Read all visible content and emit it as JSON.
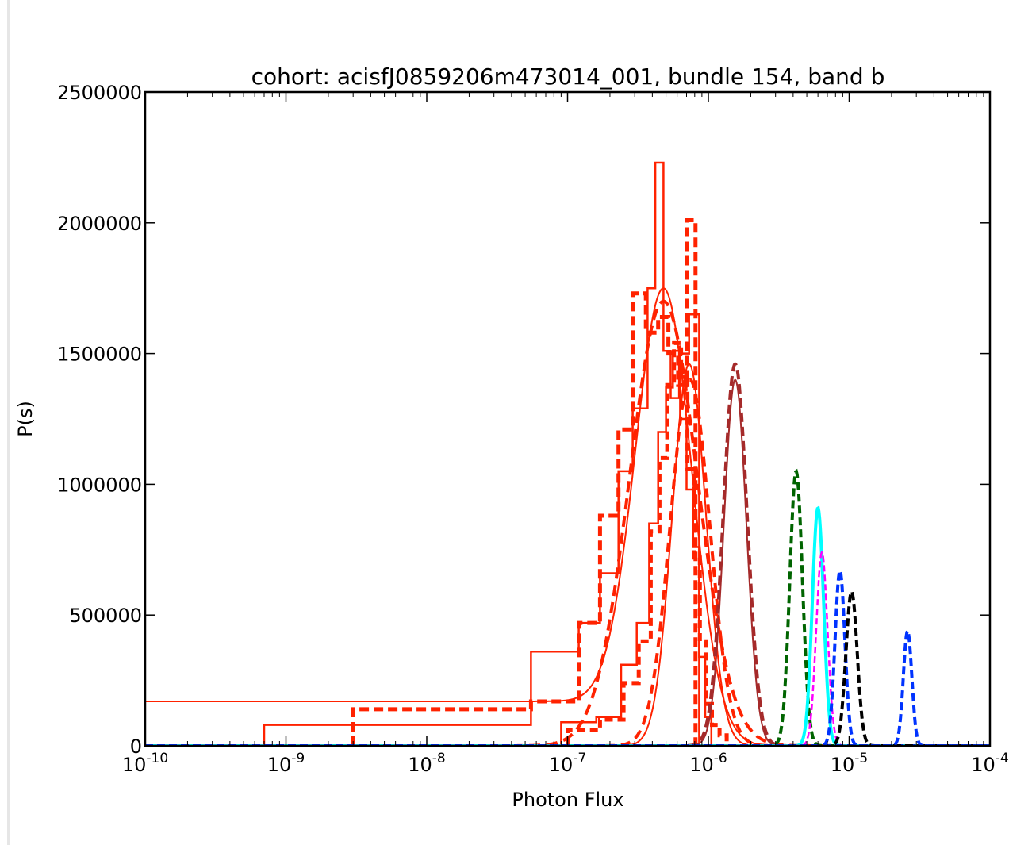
{
  "chart_data": {
    "type": "line",
    "title": "cohort: acisfJ0859206m473014_001, bundle 154, band b",
    "xlabel": "Photon Flux",
    "ylabel": "P(s)",
    "x_scale": "log",
    "xlim": [
      1e-10,
      0.0001
    ],
    "ylim": [
      0,
      2500000
    ],
    "x_ticks": [
      {
        "value": 1e-10,
        "base": "10",
        "exp": "-10"
      },
      {
        "value": 1e-09,
        "base": "10",
        "exp": "-9"
      },
      {
        "value": 1e-08,
        "base": "10",
        "exp": "-8"
      },
      {
        "value": 1e-07,
        "base": "10",
        "exp": "-7"
      },
      {
        "value": 1e-06,
        "base": "10",
        "exp": "-6"
      },
      {
        "value": 1e-05,
        "base": "10",
        "exp": "-5"
      },
      {
        "value": 0.0001,
        "base": "10",
        "exp": "-4"
      }
    ],
    "y_ticks": [
      {
        "value": 0,
        "label": "0"
      },
      {
        "value": 500000,
        "label": "500000"
      },
      {
        "value": 1000000,
        "label": "1000000"
      },
      {
        "value": 1500000,
        "label": "1500000"
      },
      {
        "value": 2000000,
        "label": "2000000"
      },
      {
        "value": 2500000,
        "label": "2500000"
      }
    ],
    "grid": false,
    "legend": "none",
    "series": [
      {
        "color": "#ff2200",
        "style": "step",
        "width": 2.5,
        "dash": "",
        "edges": [
          7e-10,
          3e-09,
          5.5e-08,
          1.2e-07,
          1.7e-07,
          2.3e-07,
          2.9e-07,
          3.7e-07,
          4.2e-07,
          4.8e-07,
          5.4e-07,
          6.2e-07,
          7.3e-07,
          8.6e-07
        ],
        "values": [
          80000,
          80000,
          360000,
          470000,
          660000,
          1050000,
          1290000,
          1750000,
          2230000,
          1510000,
          1330000,
          1500000,
          1650000,
          0
        ]
      },
      {
        "color": "#ff2200",
        "style": "step",
        "width": 5,
        "dash": "12,6",
        "edges": [
          3e-09,
          5.5e-08,
          1.2e-07,
          1.7e-07,
          2.3e-07,
          2.9e-07,
          3.6e-07,
          4.4e-07,
          5.2e-07,
          6.1e-07,
          7e-07,
          8.1e-07
        ],
        "values": [
          140000,
          170000,
          470000,
          880000,
          1210000,
          1730000,
          1580000,
          1640000,
          1500000,
          1380000,
          2010000,
          0
        ]
      },
      {
        "color": "#ff2200",
        "style": "curve",
        "width": 2,
        "dash": "",
        "baseline": 170000,
        "amp": 1580000,
        "mu": 4.8e-07,
        "sigma_dex": 0.2
      },
      {
        "color": "#ff2200",
        "style": "curve",
        "width": 4,
        "dash": "14,8",
        "baseline": 0,
        "amp": 1700000,
        "mu": 4.8e-07,
        "sigma_dex": 0.24
      },
      {
        "color": "#ff2200",
        "style": "step",
        "width": 2.5,
        "dash": "",
        "edges": [
          9e-08,
          1.6e-07,
          2.4e-07,
          3.1e-07,
          3.8e-07,
          4.4e-07,
          5e-07,
          5.6e-07,
          6.3e-07,
          7e-07,
          7.8e-07,
          8.6e-07,
          9.5e-07,
          1.05e-06
        ],
        "values": [
          90000,
          110000,
          310000,
          470000,
          850000,
          1200000,
          1370000,
          1510000,
          1250000,
          980000,
          760000,
          340000,
          110000,
          0
        ]
      },
      {
        "color": "#ff2200",
        "style": "step",
        "width": 5,
        "dash": "10,6",
        "edges": [
          1e-07,
          1.7e-07,
          2.5e-07,
          3.2e-07,
          3.9e-07,
          4.5e-07,
          5.1e-07,
          5.7e-07,
          6.4e-07,
          7.1e-07,
          7.9e-07,
          8.7e-07,
          9.6e-07,
          1.06e-06,
          1.2e-06,
          1.35e-06
        ],
        "values": [
          60000,
          100000,
          240000,
          400000,
          820000,
          1100000,
          1380000,
          1540000,
          1410000,
          1060000,
          720000,
          400000,
          160000,
          80000,
          40000,
          0
        ]
      },
      {
        "color": "#ff2200",
        "style": "curve",
        "width": 2,
        "dash": "",
        "baseline": 0,
        "amp": 1460000,
        "mu": 7.3e-07,
        "sigma_dex": 0.12
      },
      {
        "color": "#ff2200",
        "style": "curve",
        "width": 4,
        "dash": "12,8",
        "baseline": 0,
        "amp": 1400000,
        "mu": 7.4e-07,
        "sigma_dex": 0.14
      },
      {
        "color": "#a52a2a",
        "style": "curve",
        "width": 4,
        "dash": "12,6",
        "baseline": 0,
        "amp": 1460000,
        "mu": 1.55e-06,
        "sigma_dex": 0.085
      },
      {
        "color": "#a52a2a",
        "style": "curve",
        "width": 2,
        "dash": "",
        "baseline": 0,
        "amp": 1400000,
        "mu": 1.55e-06,
        "sigma_dex": 0.08
      },
      {
        "color": "#006400",
        "style": "curve",
        "width": 4,
        "dash": "10,5",
        "baseline": 0,
        "amp": 1050000,
        "mu": 4.2e-06,
        "sigma_dex": 0.045
      },
      {
        "color": "#00ffff",
        "style": "curve",
        "width": 4,
        "dash": "",
        "baseline": 0,
        "amp": 910000,
        "mu": 6e-06,
        "sigma_dex": 0.04
      },
      {
        "color": "#ff00ff",
        "style": "curve",
        "width": 2.5,
        "dash": "8,4",
        "baseline": 0,
        "amp": 740000,
        "mu": 6.4e-06,
        "sigma_dex": 0.04
      },
      {
        "color": "#0033ff",
        "style": "curve",
        "width": 4,
        "dash": "10,5",
        "baseline": 0,
        "amp": 670000,
        "mu": 8.6e-06,
        "sigma_dex": 0.035
      },
      {
        "color": "#000000",
        "style": "curve",
        "width": 4,
        "dash": "10,5",
        "baseline": 0,
        "amp": 590000,
        "mu": 1.04e-05,
        "sigma_dex": 0.04
      },
      {
        "color": "#0033ff",
        "style": "curve",
        "width": 4,
        "dash": "10,5",
        "baseline": 0,
        "amp": 440000,
        "mu": 2.6e-05,
        "sigma_dex": 0.03
      }
    ]
  }
}
